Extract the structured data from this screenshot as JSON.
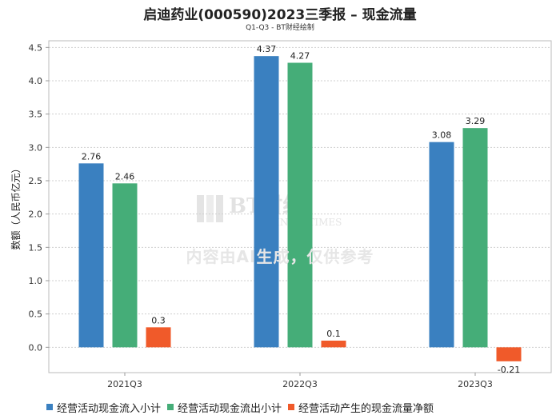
{
  "header": {
    "title": "启迪药业(000590)2023三季报 – 现金流量",
    "subtitle": "Q1-Q3 - BT财经绘制"
  },
  "watermark": {
    "logo_main": "BT财经",
    "logo_sub": "BUSINESSTIMES",
    "notice": "内容由AI生成，仅供参考"
  },
  "colors": {
    "series": [
      "#3a80c0",
      "#45ad78",
      "#f05a2a"
    ]
  },
  "chart_data": {
    "type": "bar",
    "title": "启迪药业(000590)2023三季报 – 现金流量",
    "subtitle": "Q1-Q3 - BT财经绘制",
    "xlabel": "",
    "ylabel": "数额（人民币亿元）",
    "categories": [
      "2021Q3",
      "2022Q3",
      "2023Q3"
    ],
    "series": [
      {
        "name": "经营活动现金流入小计",
        "values": [
          2.76,
          4.37,
          3.08
        ]
      },
      {
        "name": "经营活动现金流出小计",
        "values": [
          2.46,
          4.27,
          3.29
        ]
      },
      {
        "name": "经营活动产生的现金流量净额",
        "values": [
          0.3,
          0.1,
          -0.21
        ]
      }
    ],
    "ylim": [
      -0.38,
      4.6
    ],
    "yticks": [
      "0.0",
      "0.5",
      "1.0",
      "1.5",
      "2.0",
      "2.5",
      "3.0",
      "3.5",
      "4.0",
      "4.5"
    ],
    "data_labels": [
      [
        "2.76",
        "4.37",
        "3.08"
      ],
      [
        "2.46",
        "4.27",
        "3.29"
      ],
      [
        "0.3",
        "0.1",
        "-0.21"
      ]
    ],
    "grid": true,
    "legend": "bottom-left"
  }
}
